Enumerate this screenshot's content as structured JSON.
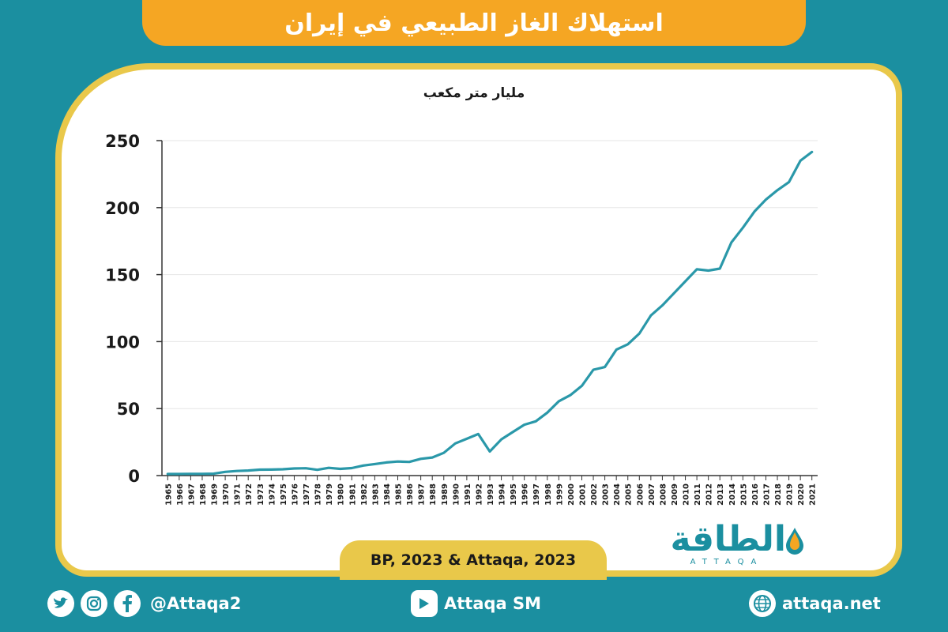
{
  "header": {
    "title": "استهلاك الغاز الطبيعي في إيران"
  },
  "source": "BP, 2023 & Attaqa, 2023",
  "logo": {
    "arabic": "الطاقة",
    "latin": "ATTAQA"
  },
  "footer": {
    "social_handle": "@Attaqa2",
    "youtube": "Attaqa SM",
    "website": "attaqa.net"
  },
  "icons": {
    "twitter": "twitter-icon",
    "instagram": "instagram-icon",
    "facebook": "facebook-icon",
    "youtube": "youtube-icon",
    "web": "globe-icon"
  },
  "colors": {
    "line": "#2a98a9",
    "banner": "#f5a623",
    "frame": "#e9c84a",
    "background": "#1b8fa0"
  },
  "chart_data": {
    "type": "line",
    "ylabel": "مليار متر مكعب",
    "ylim": [
      0,
      250
    ],
    "yticks": [
      0,
      50,
      100,
      150,
      200,
      250
    ],
    "grid": true,
    "x": [
      "1965",
      "1966",
      "1967",
      "1968",
      "1969",
      "1970",
      "1971",
      "1972",
      "1973",
      "1974",
      "1975",
      "1976",
      "1977",
      "1978",
      "1979",
      "1980",
      "1981",
      "1982",
      "1983",
      "1984",
      "1985",
      "1986",
      "1987",
      "1988",
      "1989",
      "1990",
      "1991",
      "1992",
      "1993",
      "1994",
      "1995",
      "1996",
      "1997",
      "1998",
      "1999",
      "2000",
      "2001",
      "2002",
      "2003",
      "2004",
      "2005",
      "2006",
      "2007",
      "2008",
      "2009",
      "2010",
      "2011",
      "2012",
      "2013",
      "2014",
      "2015",
      "2016",
      "2017",
      "2018",
      "2019",
      "2020",
      "2021"
    ],
    "series": [
      {
        "values": [
          1.2,
          1.2,
          1.3,
          1.3,
          1.4,
          2.8,
          3.4,
          3.8,
          4.4,
          4.5,
          4.7,
          5.3,
          5.5,
          4.3,
          5.8,
          5.0,
          5.6,
          7.5,
          8.6,
          9.8,
          10.5,
          10.2,
          12.5,
          13.5,
          17.0,
          24.0,
          27.5,
          31.0,
          18.0,
          27.0,
          32.5,
          38.0,
          40.5,
          47.0,
          55.5,
          60.0,
          67.0,
          79.0,
          81.0,
          94.0,
          98.0,
          106.0,
          119.5,
          127.0,
          136.0,
          145.0,
          154.0,
          153.0,
          154.5,
          174.0,
          185.0,
          197.0,
          206.0,
          213.0,
          219.0,
          235.0,
          241.5
        ]
      }
    ]
  }
}
